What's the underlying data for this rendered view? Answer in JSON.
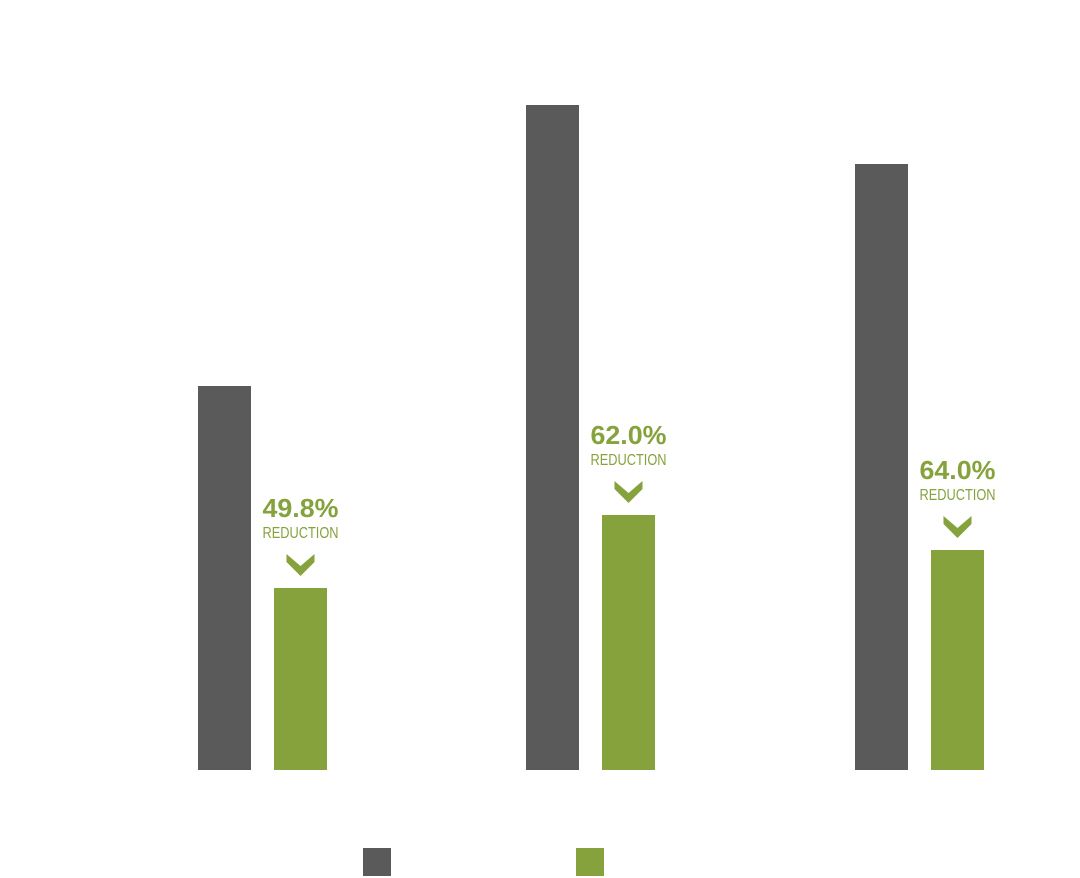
{
  "chart_data": {
    "type": "bar",
    "categories": [
      null,
      null,
      null
    ],
    "series": [
      {
        "color": "#5a5a5a",
        "values": [
          384,
          665,
          606
        ]
      },
      {
        "color": "#86a23d",
        "values": [
          182,
          255,
          220
        ]
      }
    ],
    "ylim": [
      0,
      700
    ],
    "annotations": {
      "values": [
        49.8,
        62.0,
        64.0
      ],
      "value_labels": [
        "49.8%",
        "62.0%",
        "64.0%"
      ],
      "text": "REDUCTION",
      "color": "#86a23d"
    }
  }
}
